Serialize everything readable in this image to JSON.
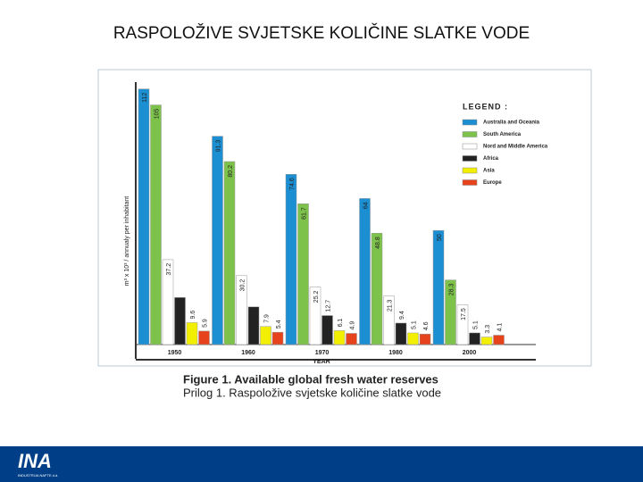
{
  "slide_title": "RASPOLOŽIVE SVJETSKE KOLIČINE SLATKE VODE",
  "footer": {
    "logo": "INA",
    "company": "INDUSTRIJA NAFTE d.d."
  },
  "chart_data": {
    "type": "bar",
    "caption": [
      "Figure 1.   Available global fresh water reserves",
      "Prilog 1.  Raspoložive svjetske količine slatke vode"
    ],
    "ylabel": "m³ x 10³ / annualy per inhabitant",
    "xlabel": "YEAR",
    "legend_title": "LEGEND :",
    "categories": [
      "1950",
      "1960",
      "1970",
      "1980",
      "2000"
    ],
    "ylim": [
      0,
      115
    ],
    "series": [
      {
        "name": "Australia and Oceania",
        "color": "#1b8fd2",
        "values": [
          112,
          91.3,
          74.6,
          64,
          50
        ]
      },
      {
        "name": "South America",
        "color": "#7dc24b",
        "values": [
          105,
          80.2,
          61.7,
          48.8,
          28.3
        ]
      },
      {
        "name": "Nord and Middle America",
        "color": "#ffffff",
        "values": [
          37.2,
          30.2,
          25.2,
          21.3,
          17.5
        ]
      },
      {
        "name": "Africa",
        "color": "#222222",
        "values": [
          20.6,
          16.5,
          12.7,
          9.4,
          5.1
        ]
      },
      {
        "name": "Asia",
        "color": "#f2f000",
        "values": [
          9.6,
          7.9,
          6.1,
          5.1,
          3.3
        ]
      },
      {
        "name": "Europe",
        "color": "#e6421c",
        "values": [
          5.9,
          5.4,
          4.9,
          4.6,
          4.1
        ]
      }
    ]
  }
}
